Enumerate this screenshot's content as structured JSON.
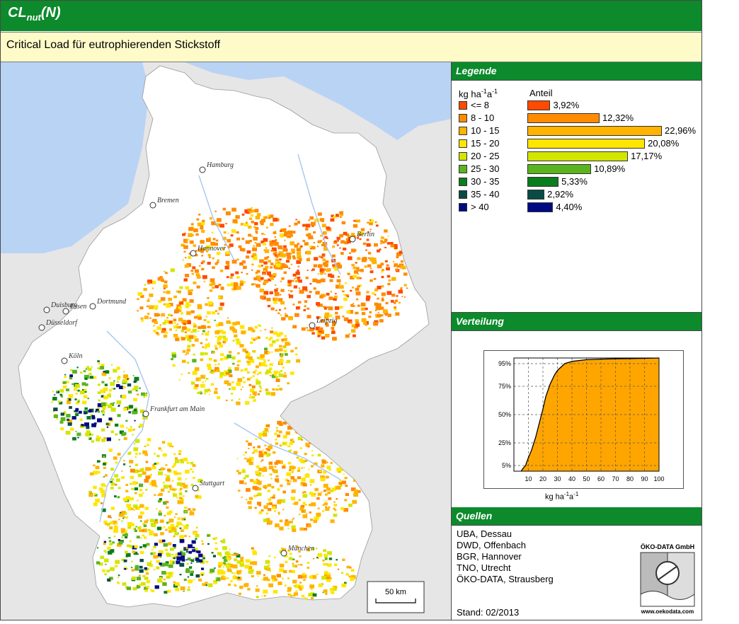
{
  "header": {
    "title_main": "CL",
    "title_sub": "nut",
    "title_suffix": "(N)",
    "subtitle": "Critical Load für eutrophierenden Stickstoff"
  },
  "legend": {
    "heading": "Legende",
    "unit_label": "kg ha-1a-1",
    "share_label": "Anteil",
    "classes": [
      {
        "label": "<= 8",
        "percent": "3,92%",
        "value": 3.92,
        "color": "#ff4a00"
      },
      {
        "label": "8 - 10",
        "percent": "12,32%",
        "value": 12.32,
        "color": "#ff8c00"
      },
      {
        "label": "10 - 15",
        "percent": "22,96%",
        "value": 22.96,
        "color": "#ffb400"
      },
      {
        "label": "15 - 20",
        "percent": "20,08%",
        "value": 20.08,
        "color": "#ffe600"
      },
      {
        "label": "20 - 25",
        "percent": "17,17%",
        "value": 17.17,
        "color": "#d2e600"
      },
      {
        "label": "25 - 30",
        "percent": "10,89%",
        "value": 10.89,
        "color": "#5ab41e"
      },
      {
        "label": "30 - 35",
        "percent": "5,33%",
        "value": 5.33,
        "color": "#0a7d1e"
      },
      {
        "label": "35 - 40",
        "percent": "2,92%",
        "value": 2.92,
        "color": "#0a4b46"
      },
      {
        "label": "> 40",
        "percent": "4,40%",
        "value": 4.4,
        "color": "#000a82"
      }
    ]
  },
  "distribution": {
    "heading": "Verteilung",
    "xlabel": "kg ha-1a-1",
    "fill_color": "#ffa500",
    "chart_data": {
      "type": "area",
      "title": "",
      "xlabel": "kg ha-1a-1",
      "ylabel": "",
      "xlim": [
        0,
        100
      ],
      "ylim": [
        0,
        100
      ],
      "x_ticks": [
        "10",
        "20",
        "30",
        "40",
        "50",
        "60",
        "70",
        "80",
        "90",
        "100"
      ],
      "y_ticks": [
        "5%",
        "25%",
        "50%",
        "75%",
        "95%"
      ],
      "x": [
        5,
        6,
        8,
        10,
        12,
        15,
        18,
        20,
        22,
        25,
        28,
        30,
        35,
        40,
        50,
        60,
        70,
        80,
        90,
        100
      ],
      "y": [
        0,
        2,
        5,
        12,
        18,
        30,
        45,
        55,
        66,
        77,
        85,
        89,
        95,
        97,
        98.5,
        99,
        99.3,
        99.5,
        99.7,
        100
      ]
    }
  },
  "sources": {
    "heading": "Quellen",
    "lines": [
      "UBA, Dessau",
      "DWD, Offenbach",
      "BGR, Hannover",
      "TNO, Utrecht",
      "ÖKO-DATA, Strausberg"
    ],
    "stand": "Stand: 02/2013",
    "logo_top": "ÖKO-DATA GmbH",
    "logo_bottom": "www.oekodata.com"
  },
  "map": {
    "scale_label": "50 km",
    "cities": [
      {
        "name": "Hamburg"
      },
      {
        "name": "Bremen"
      },
      {
        "name": "Berlin"
      },
      {
        "name": "Hannover"
      },
      {
        "name": "Leipzig"
      },
      {
        "name": "Duisburg"
      },
      {
        "name": "Essen"
      },
      {
        "name": "Dortmund"
      },
      {
        "name": "Düsseldorf"
      },
      {
        "name": "Köln"
      },
      {
        "name": "Frankfurt am Main"
      },
      {
        "name": "Stuttgart"
      },
      {
        "name": "München"
      }
    ],
    "colors": {
      "sea": "#b9d3f5",
      "land": "#e6e6e6",
      "germany": "#ffffff",
      "water": "#a7c6ef"
    }
  }
}
